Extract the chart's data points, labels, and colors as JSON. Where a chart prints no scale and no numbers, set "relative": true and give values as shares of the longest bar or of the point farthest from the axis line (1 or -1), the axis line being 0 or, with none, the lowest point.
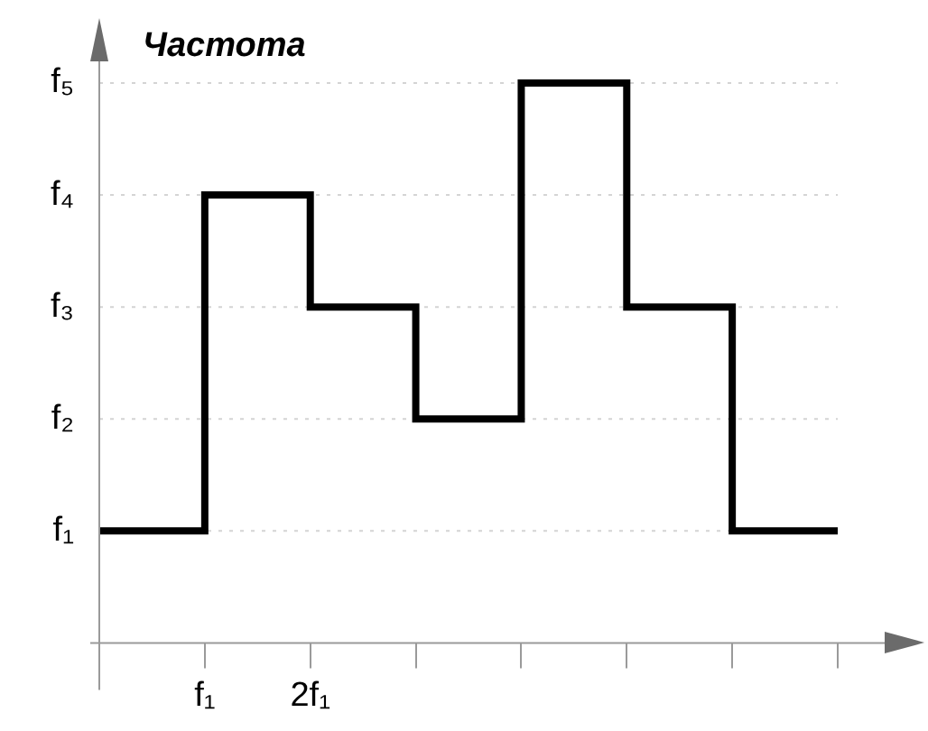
{
  "chart_data": {
    "type": "step",
    "ylabel": "Частота",
    "relative": true,
    "categories": [
      null,
      "f₁",
      "2f₁",
      null,
      null,
      null,
      null,
      null
    ],
    "series": [
      {
        "color": "#000000",
        "values": [
          0.2,
          0.8,
          0.6,
          0.4,
          1,
          0.6,
          0.2,
          0.2
        ]
      }
    ],
    "ref_lines": [
      {
        "axis": "y",
        "value": 0.2,
        "label": "f₁",
        "color": "#d4d4d4",
        "line_style": "dotted"
      },
      {
        "axis": "y",
        "value": 0.4,
        "label": "f₂",
        "color": "#d4d4d4",
        "line_style": "dotted"
      },
      {
        "axis": "y",
        "value": 0.6,
        "label": "f₃",
        "color": "#d4d4d4",
        "line_style": "dotted"
      },
      {
        "axis": "y",
        "value": 0.8,
        "label": "f₄",
        "color": "#d4d4d4",
        "line_style": "dotted"
      },
      {
        "axis": "y",
        "value": 1,
        "label": "f₅",
        "color": "#d4d4d4",
        "line_style": "dotted"
      }
    ],
    "marker": "none",
    "line_style": "solid"
  }
}
